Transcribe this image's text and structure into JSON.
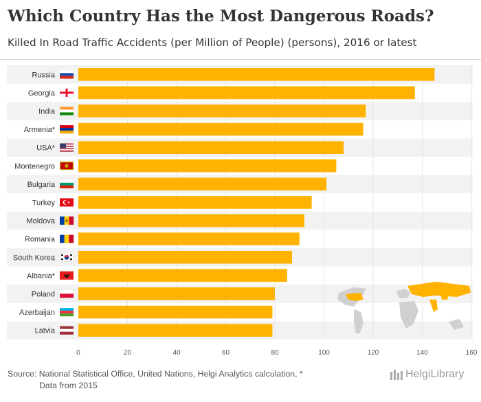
{
  "header": {
    "title": "Which Country Has the Most Dangerous Roads?",
    "subtitle": "Killed In Road Traffic Accidents (per Million of People) (persons), 2016 or latest"
  },
  "chart_data": {
    "type": "bar",
    "orientation": "horizontal",
    "categories": [
      "Russia",
      "Georgia",
      "India",
      "Armenia*",
      "USA*",
      "Montenegro",
      "Bulgaria",
      "Turkey",
      "Moldova",
      "Romania",
      "South Korea",
      "Albania*",
      "Poland",
      "Azerbaijan",
      "Latvia"
    ],
    "values": [
      145,
      137,
      117,
      116,
      108,
      105,
      101,
      95,
      92,
      90,
      87,
      85,
      80,
      79,
      79
    ],
    "xlim": [
      0,
      160
    ],
    "xticks": [
      0,
      20,
      40,
      60,
      80,
      100,
      120,
      140,
      160
    ],
    "bar_color": "#FFB300",
    "row_band_color": "#F2F2F2",
    "grid": true
  },
  "footer": {
    "source_line1": "Source: National Statistical Office, United Nations, Helgi Analytics calculation, *",
    "source_line2": "Data from 2015",
    "brand": "HelgiLibrary"
  }
}
